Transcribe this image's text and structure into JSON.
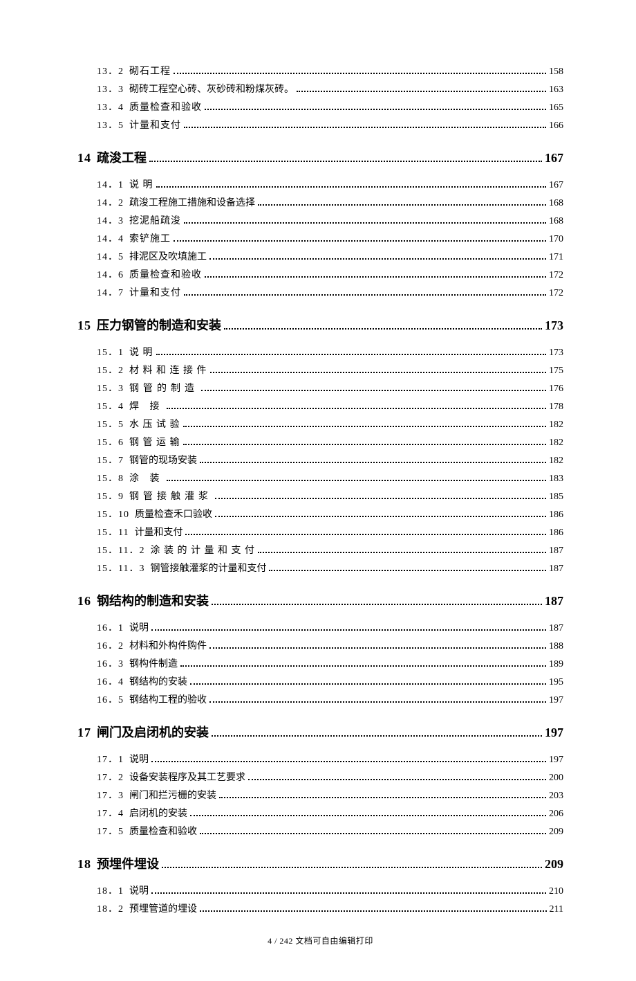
{
  "footer": "4 / 242 文档可自由编辑打印",
  "entries": [
    {
      "level": 2,
      "num": "13．2",
      "title": "砌石工程",
      "page": "158",
      "cls": ""
    },
    {
      "level": 2,
      "num": "13．3",
      "title": "砌砖工程空心砖、灰砂砖和粉煤灰砖。",
      "page": "163",
      "cls": "tight"
    },
    {
      "level": 2,
      "num": "13．4",
      "title": "质量检查和验收",
      "page": "165",
      "cls": ""
    },
    {
      "level": 2,
      "num": "13．5",
      "title": "计量和支付",
      "page": "166",
      "cls": ""
    },
    {
      "level": 1,
      "num": "14",
      "title": "疏浚工程",
      "page": "167"
    },
    {
      "level": 2,
      "num": "14．1",
      "title": "说 明",
      "page": "167",
      "cls": ""
    },
    {
      "level": 2,
      "num": "14．2",
      "title": "疏浚工程施工措施和设备选择",
      "page": "168",
      "cls": "tight"
    },
    {
      "level": 2,
      "num": "14．3",
      "title": "挖泥船疏浚",
      "page": "168",
      "cls": ""
    },
    {
      "level": 2,
      "num": "14．4",
      "title": "索铲施工",
      "page": "170",
      "cls": ""
    },
    {
      "level": 2,
      "num": "14．5",
      "title": "排泥区及吹填施工",
      "page": "171",
      "cls": "tight"
    },
    {
      "level": 2,
      "num": "14．6",
      "title": "质量检查和验收",
      "page": "172",
      "cls": ""
    },
    {
      "level": 2,
      "num": "14．7",
      "title": "计量和支付",
      "page": "172",
      "cls": ""
    },
    {
      "level": 1,
      "num": "15",
      "title": "压力钢管的制造和安装",
      "page": "173"
    },
    {
      "level": 2,
      "num": "15．1",
      "title": "说 明",
      "page": "173",
      "cls": ""
    },
    {
      "level": 2,
      "num": "15．2",
      "title": "材 料 和 连 接 件",
      "page": "175",
      "cls": ""
    },
    {
      "level": 2,
      "num": "15．3",
      "title": "钢管的制造",
      "page": "176",
      "cls": "wide"
    },
    {
      "level": 2,
      "num": "15．4",
      "title": "焊 接",
      "page": "178",
      "cls": "wide"
    },
    {
      "level": 2,
      "num": "15．5",
      "title": "水 压 试 验",
      "page": "182",
      "cls": ""
    },
    {
      "level": 2,
      "num": "15．6",
      "title": "钢 管 运 输",
      "page": "182",
      "cls": ""
    },
    {
      "level": 2,
      "num": "15．7",
      "title": "钢管的现场安装",
      "page": "182",
      "cls": "tight"
    },
    {
      "level": 2,
      "num": "15．8",
      "title": "涂 装",
      "page": "183",
      "cls": "wide"
    },
    {
      "level": 2,
      "num": "15．9",
      "title": "钢管接触灌浆",
      "page": "185",
      "cls": "wide"
    },
    {
      "level": 2,
      "num": "15．10",
      "title": "质量检查禾口验收",
      "page": "186",
      "cls": "tight"
    },
    {
      "level": 2,
      "num": "15．11",
      "title": "计量和支付",
      "page": "186",
      "cls": "tight"
    },
    {
      "level": 2,
      "num": "15．11．2",
      "title": "涂 装 的 计 量 和 支 付",
      "page": "187",
      "cls": ""
    },
    {
      "level": 2,
      "num": "15．11．3",
      "title": "钢管接触灌浆的计量和支付",
      "page": "187",
      "cls": "tight"
    },
    {
      "level": 1,
      "num": "16",
      "title": "钢结构的制造和安装",
      "page": "187"
    },
    {
      "level": 2,
      "num": "16．1",
      "title": "说明",
      "page": "187",
      "cls": "tight"
    },
    {
      "level": 2,
      "num": "16．2",
      "title": "材料和外构件购件",
      "page": "188",
      "cls": "tight"
    },
    {
      "level": 2,
      "num": "16．3",
      "title": "钢构件制造",
      "page": "189",
      "cls": "tight"
    },
    {
      "level": 2,
      "num": "16．4",
      "title": "钢结构的安装",
      "page": "195",
      "cls": "tight"
    },
    {
      "level": 2,
      "num": "16．5",
      "title": "钢结构工程的验收",
      "page": "197",
      "cls": "tight"
    },
    {
      "level": 1,
      "num": "17",
      "title": "闸门及启闭机的安装",
      "page": "197"
    },
    {
      "level": 2,
      "num": "17．1",
      "title": "说明",
      "page": "197",
      "cls": "tight"
    },
    {
      "level": 2,
      "num": "17．2",
      "title": "设备安装程序及其工艺要求",
      "page": "200",
      "cls": "tight"
    },
    {
      "level": 2,
      "num": "17．3",
      "title": "闸门和拦污栅的安装",
      "page": "203",
      "cls": "tight"
    },
    {
      "level": 2,
      "num": "17．4",
      "title": "启闭机的安装",
      "page": "206",
      "cls": "tight"
    },
    {
      "level": 2,
      "num": "17．5",
      "title": "质量检查和验收",
      "page": "209",
      "cls": "tight"
    },
    {
      "level": 1,
      "num": "18",
      "title": "预埋件埋设",
      "page": "209"
    },
    {
      "level": 2,
      "num": "18．1",
      "title": "说明",
      "page": "210",
      "cls": "tight"
    },
    {
      "level": 2,
      "num": "18．2",
      "title": "预埋管道的埋设",
      "page": "211",
      "cls": "tight"
    }
  ]
}
